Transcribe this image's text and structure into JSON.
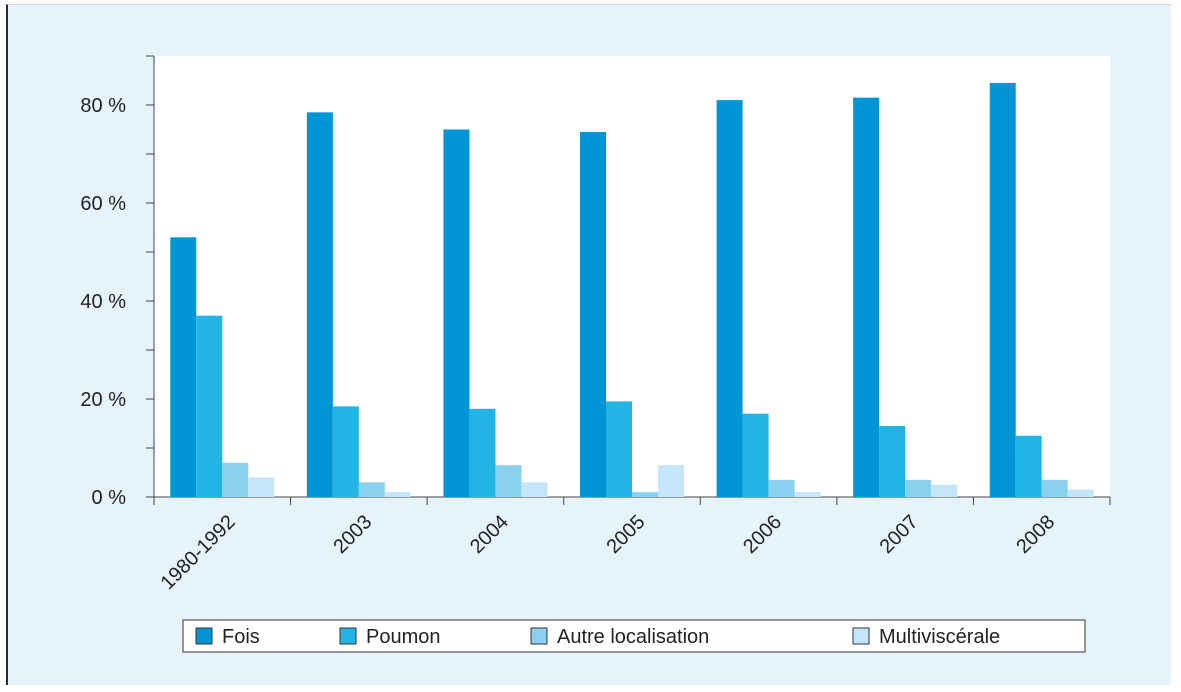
{
  "chart_data": {
    "type": "bar",
    "categories": [
      "1980-1992",
      "2003",
      "2004",
      "2005",
      "2006",
      "2007",
      "2008"
    ],
    "series": [
      {
        "name": "Fois",
        "color": "#0096d6",
        "values": [
          53,
          78.5,
          75,
          74.5,
          81,
          81.5,
          84.5
        ]
      },
      {
        "name": "Poumon",
        "color": "#23b4e6",
        "values": [
          37,
          18.5,
          18,
          19.5,
          17,
          14.5,
          12.5
        ]
      },
      {
        "name": "Autre localisation",
        "color": "#8ad1f0",
        "values": [
          7,
          3,
          6.5,
          1,
          3.5,
          3.5,
          3.5
        ]
      },
      {
        "name": "Multiviscérale",
        "color": "#c4e6f8",
        "values": [
          4,
          1,
          3,
          6.5,
          1,
          2.5,
          1.5
        ]
      }
    ],
    "y_ticks": [
      {
        "value": 0,
        "label": "0 %"
      },
      {
        "value": 20,
        "label": "20 %"
      },
      {
        "value": 40,
        "label": "40 %"
      },
      {
        "value": 60,
        "label": "60 %"
      },
      {
        "value": 80,
        "label": "80 %"
      }
    ],
    "ylim": [
      0,
      90
    ],
    "title": "",
    "xlabel": "",
    "ylabel": "",
    "legend_position": "bottom",
    "grid": false
  }
}
